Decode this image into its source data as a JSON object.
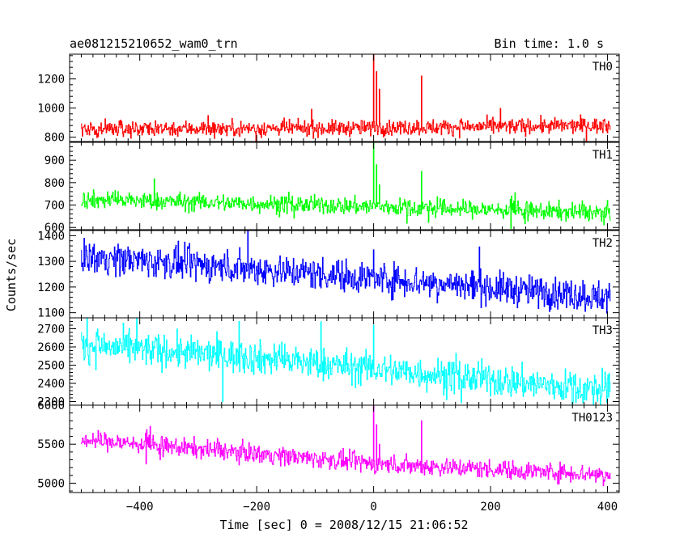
{
  "chart_data": {
    "type": "line",
    "title": "ae081215210652_wam0_trn",
    "subtitle": "Bin time: 1.0 s",
    "xlabel": "Time [sec] 0 = 2008/12/15 21:06:52",
    "ylabel": "Counts/sec",
    "xlim": [
      -520,
      420
    ],
    "x_ticks": [
      -400,
      -200,
      0,
      200,
      400
    ],
    "x_tick_labels": [
      "−400",
      "−200",
      "0",
      "200",
      "400"
    ],
    "bin_time_s": 1.0,
    "data_range": [
      -500,
      405
    ],
    "legend": "none",
    "grid": false,
    "panels": [
      {
        "label": "TH0",
        "color": "#ff0000",
        "ylim": [
          770,
          1370
        ],
        "y_ticks": [
          800,
          1000,
          1200
        ],
        "trend": [
          [
            -500,
            860
          ],
          [
            -100,
            860
          ],
          [
            400,
            880
          ]
        ],
        "noise": 38,
        "spikes": [
          [
            0,
            1370
          ],
          [
            5,
            1250
          ],
          [
            10,
            1130
          ],
          [
            82,
            1220
          ]
        ]
      },
      {
        "label": "TH1",
        "color": "#00ff00",
        "ylim": [
          590,
          980
        ],
        "y_ticks": [
          600,
          700,
          800,
          900
        ],
        "trend": [
          [
            -500,
            725
          ],
          [
            -100,
            700
          ],
          [
            400,
            665
          ]
        ],
        "noise": 28,
        "spikes": [
          [
            0,
            980
          ],
          [
            5,
            880
          ],
          [
            10,
            790
          ],
          [
            82,
            850
          ]
        ]
      },
      {
        "label": "TH2",
        "color": "#0000ff",
        "ylim": [
          1080,
          1420
        ],
        "y_ticks": [
          1100,
          1200,
          1300,
          1400
        ],
        "trend": [
          [
            -500,
            1320
          ],
          [
            -200,
            1270
          ],
          [
            0,
            1235
          ],
          [
            400,
            1160
          ]
        ],
        "noise": 45,
        "spikes": [
          [
            -215,
            1420
          ],
          [
            0,
            1345
          ]
        ]
      },
      {
        "label": "TH3",
        "color": "#00ffff",
        "ylim": [
          2280,
          2760
        ],
        "y_ticks": [
          2300,
          2400,
          2500,
          2600,
          2700
        ],
        "trend": [
          [
            -500,
            2610
          ],
          [
            -200,
            2540
          ],
          [
            0,
            2480
          ],
          [
            400,
            2360
          ]
        ],
        "noise": 65,
        "spikes": [
          [
            -490,
            2760
          ],
          [
            -230,
            2740
          ],
          [
            0,
            2720
          ]
        ]
      },
      {
        "label": "TH0123",
        "color": "#ff00ff",
        "ylim": [
          4880,
          6000
        ],
        "y_ticks": [
          5000,
          5500,
          6000
        ],
        "trend": [
          [
            -500,
            5560
          ],
          [
            -200,
            5380
          ],
          [
            0,
            5250
          ],
          [
            400,
            5110
          ]
        ],
        "noise": 85,
        "spikes": [
          [
            0,
            6000
          ],
          [
            5,
            5750
          ],
          [
            10,
            5500
          ],
          [
            82,
            5800
          ]
        ]
      }
    ]
  }
}
